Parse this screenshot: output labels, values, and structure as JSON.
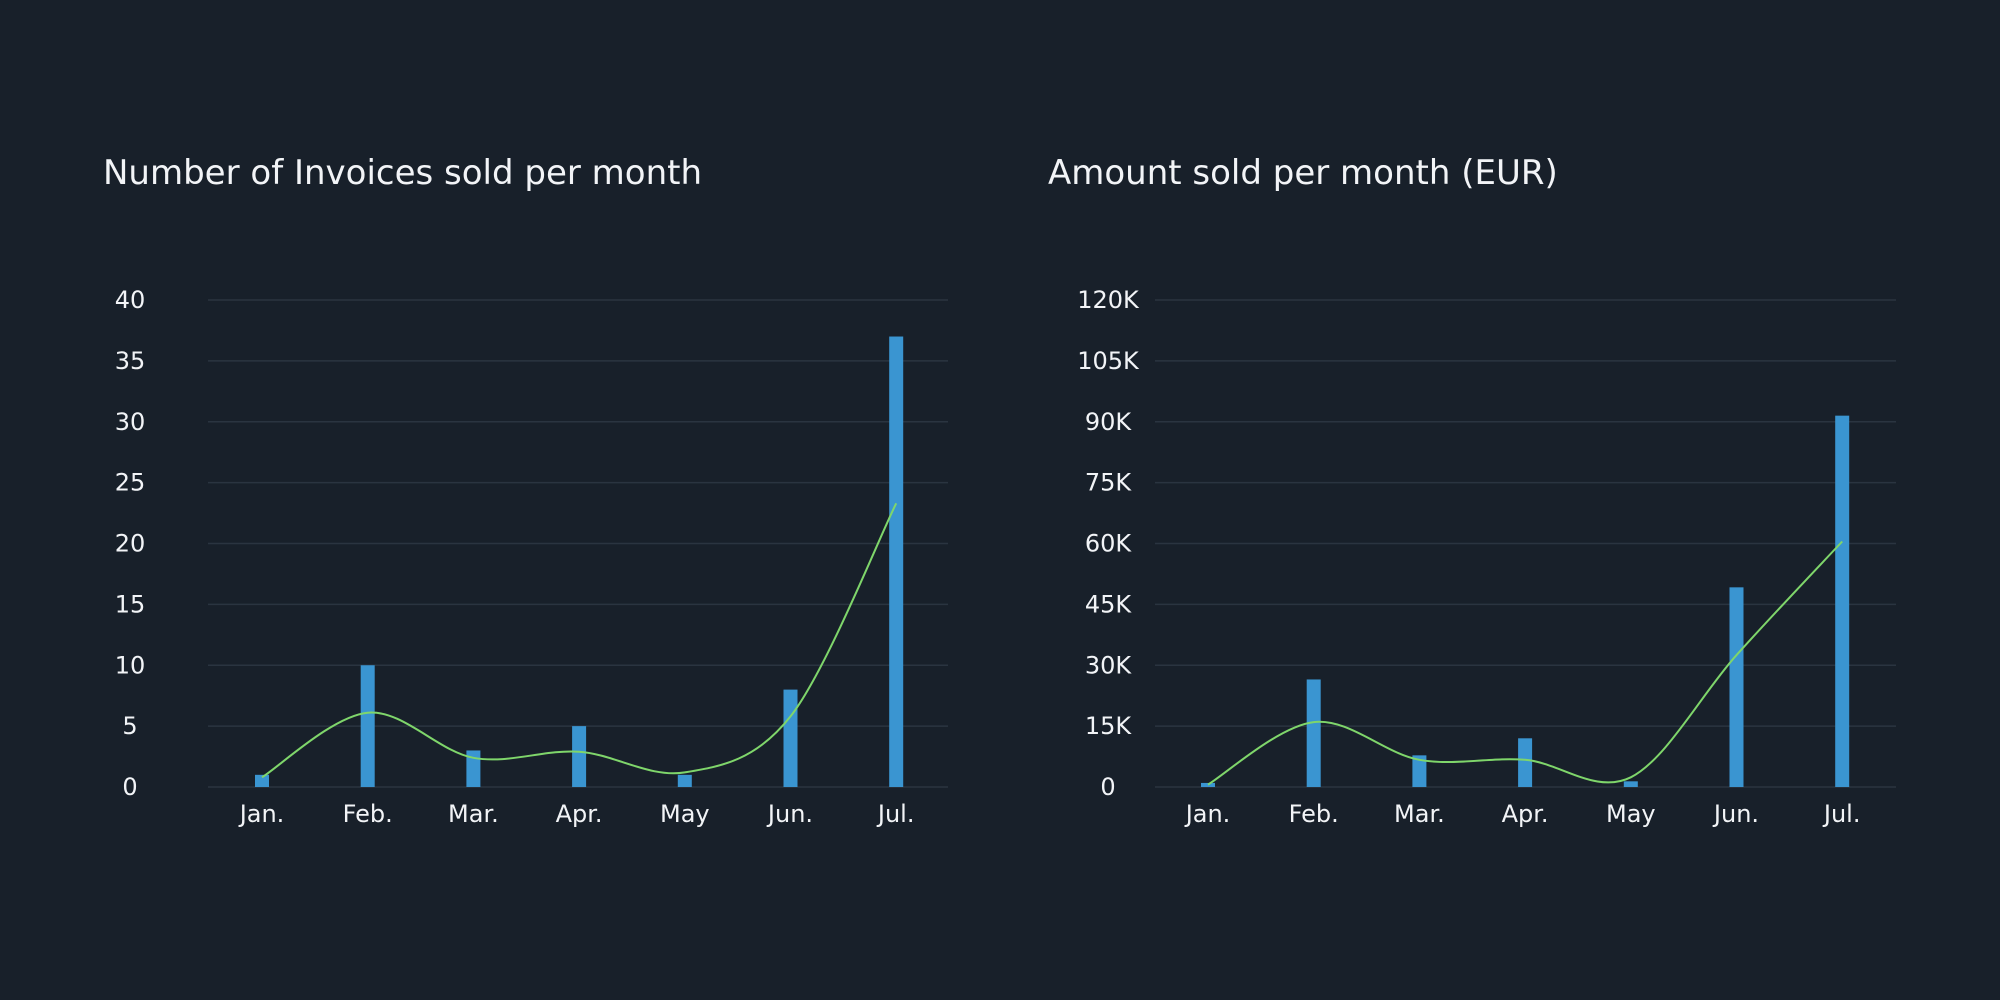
{
  "colors": {
    "background": "#18202a",
    "bar": "#3a95d1",
    "trend": "#7fd66b",
    "grid": "#2a3440",
    "text": "#f2f4f7"
  },
  "chart_data": [
    {
      "type": "bar",
      "title": "Number of Invoices sold per month",
      "xlabel": "",
      "ylabel": "",
      "categories": [
        "Jan.",
        "Feb.",
        "Mar.",
        "Apr.",
        "May",
        "Jun.",
        "Jul."
      ],
      "values": [
        1,
        10,
        3,
        5,
        1,
        8,
        37
      ],
      "ylim": [
        0,
        40
      ],
      "yticks": [
        0,
        5,
        10,
        15,
        20,
        25,
        30,
        35,
        40
      ],
      "ytick_labels": [
        "0",
        "5",
        "10",
        "15",
        "20",
        "25",
        "30",
        "35",
        "40"
      ],
      "trend": [
        0.8,
        6.1,
        2.4,
        2.9,
        1.2,
        5.8,
        23.3
      ],
      "grid": true,
      "legend": "none"
    },
    {
      "type": "bar",
      "title": "Amount sold per month (EUR)",
      "xlabel": "",
      "ylabel": "",
      "categories": [
        "Jan.",
        "Feb.",
        "Mar.",
        "Apr.",
        "May",
        "Jun.",
        "Jul."
      ],
      "values": [
        1000,
        26500,
        7800,
        12000,
        1400,
        49200,
        91500
      ],
      "ylim": [
        0,
        120000
      ],
      "yticks": [
        0,
        15000,
        30000,
        45000,
        60000,
        75000,
        90000,
        105000,
        120000
      ],
      "ytick_labels": [
        "0",
        "15K",
        "30K",
        "45K",
        "60K",
        "75K",
        "90K",
        "105K",
        "120K"
      ],
      "trend": [
        600,
        16000,
        6700,
        6700,
        2400,
        32500,
        60500
      ],
      "grid": true,
      "legend": "none"
    }
  ]
}
